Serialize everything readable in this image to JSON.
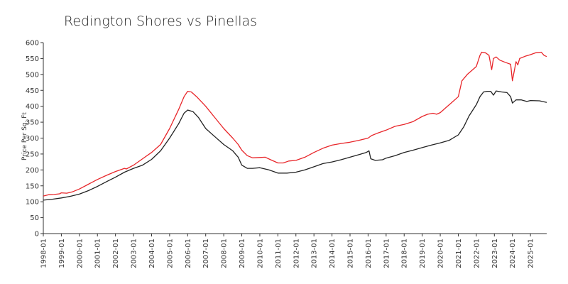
{
  "chart_data": {
    "type": "line",
    "title": "Redington Shores vs Pinellas",
    "xlabel": "",
    "ylabel": "Price Per Sq. Ft",
    "ylim": [
      0,
      600
    ],
    "yticks": [
      0,
      50,
      100,
      150,
      200,
      250,
      300,
      350,
      400,
      450,
      500,
      550,
      600
    ],
    "xticks": [
      "1998-01",
      "1999-01",
      "2000-01",
      "2001-01",
      "2002-01",
      "2003-01",
      "2004-01",
      "2005-01",
      "2006-01",
      "2007-01",
      "2008-01",
      "2009-01",
      "2010-01",
      "2011-01",
      "2012-01",
      "2013-01",
      "2014-01",
      "2015-01",
      "2016-01",
      "2017-01",
      "2018-01",
      "2019-01",
      "2020-01",
      "2021-01",
      "2022-01",
      "2023-01",
      "2024-01",
      "2025-01"
    ],
    "x_range": [
      1998.0,
      2025.9
    ],
    "grid": false,
    "colors": {
      "redington": "#e8262a",
      "pinellas": "#222222"
    },
    "series": [
      {
        "name": "Redington Shores",
        "color": "#e8262a",
        "points": [
          [
            1998.0,
            118
          ],
          [
            1998.3,
            122
          ],
          [
            1998.6,
            123
          ],
          [
            1998.9,
            125
          ],
          [
            1999.0,
            128
          ],
          [
            1999.3,
            127
          ],
          [
            1999.6,
            131
          ],
          [
            2000.0,
            140
          ],
          [
            2000.5,
            155
          ],
          [
            2001.0,
            170
          ],
          [
            2001.5,
            183
          ],
          [
            2002.0,
            195
          ],
          [
            2002.5,
            205
          ],
          [
            2002.6,
            203
          ],
          [
            2003.0,
            215
          ],
          [
            2003.5,
            235
          ],
          [
            2004.0,
            255
          ],
          [
            2004.5,
            280
          ],
          [
            2005.0,
            330
          ],
          [
            2005.5,
            390
          ],
          [
            2005.8,
            430
          ],
          [
            2006.0,
            447
          ],
          [
            2006.2,
            445
          ],
          [
            2006.5,
            430
          ],
          [
            2007.0,
            400
          ],
          [
            2007.5,
            365
          ],
          [
            2008.0,
            330
          ],
          [
            2008.5,
            300
          ],
          [
            2008.8,
            280
          ],
          [
            2009.0,
            262
          ],
          [
            2009.3,
            245
          ],
          [
            2009.6,
            238
          ],
          [
            2010.0,
            239
          ],
          [
            2010.3,
            240
          ],
          [
            2010.6,
            232
          ],
          [
            2011.0,
            222
          ],
          [
            2011.3,
            222
          ],
          [
            2011.6,
            228
          ],
          [
            2012.0,
            230
          ],
          [
            2012.5,
            240
          ],
          [
            2013.0,
            255
          ],
          [
            2013.5,
            268
          ],
          [
            2014.0,
            278
          ],
          [
            2014.5,
            283
          ],
          [
            2015.0,
            287
          ],
          [
            2015.5,
            293
          ],
          [
            2016.0,
            300
          ],
          [
            2016.2,
            308
          ],
          [
            2016.5,
            315
          ],
          [
            2017.0,
            325
          ],
          [
            2017.5,
            337
          ],
          [
            2018.0,
            343
          ],
          [
            2018.5,
            352
          ],
          [
            2019.0,
            368
          ],
          [
            2019.3,
            375
          ],
          [
            2019.6,
            378
          ],
          [
            2019.8,
            375
          ],
          [
            2020.0,
            380
          ],
          [
            2020.3,
            395
          ],
          [
            2020.6,
            410
          ],
          [
            2021.0,
            430
          ],
          [
            2021.2,
            480
          ],
          [
            2021.5,
            500
          ],
          [
            2021.8,
            515
          ],
          [
            2022.0,
            525
          ],
          [
            2022.2,
            560
          ],
          [
            2022.3,
            570
          ],
          [
            2022.5,
            568
          ],
          [
            2022.7,
            560
          ],
          [
            2022.85,
            515
          ],
          [
            2022.95,
            550
          ],
          [
            2023.1,
            555
          ],
          [
            2023.3,
            545
          ],
          [
            2023.6,
            538
          ],
          [
            2023.9,
            532
          ],
          [
            2024.0,
            480
          ],
          [
            2024.2,
            540
          ],
          [
            2024.3,
            530
          ],
          [
            2024.4,
            550
          ],
          [
            2024.7,
            557
          ],
          [
            2025.0,
            562
          ],
          [
            2025.3,
            568
          ],
          [
            2025.6,
            570
          ],
          [
            2025.75,
            560
          ],
          [
            2025.9,
            556
          ]
        ]
      },
      {
        "name": "Pinellas",
        "color": "#222222",
        "points": [
          [
            1998.0,
            105
          ],
          [
            1998.5,
            108
          ],
          [
            1999.0,
            112
          ],
          [
            1999.5,
            117
          ],
          [
            2000.0,
            124
          ],
          [
            2000.5,
            135
          ],
          [
            2001.0,
            148
          ],
          [
            2001.5,
            163
          ],
          [
            2002.0,
            177
          ],
          [
            2002.5,
            193
          ],
          [
            2003.0,
            205
          ],
          [
            2003.5,
            215
          ],
          [
            2004.0,
            233
          ],
          [
            2004.5,
            260
          ],
          [
            2005.0,
            300
          ],
          [
            2005.5,
            345
          ],
          [
            2005.8,
            378
          ],
          [
            2006.0,
            388
          ],
          [
            2006.3,
            383
          ],
          [
            2006.6,
            365
          ],
          [
            2007.0,
            330
          ],
          [
            2007.5,
            305
          ],
          [
            2008.0,
            280
          ],
          [
            2008.5,
            260
          ],
          [
            2008.8,
            240
          ],
          [
            2009.0,
            215
          ],
          [
            2009.3,
            205
          ],
          [
            2009.6,
            205
          ],
          [
            2010.0,
            207
          ],
          [
            2010.5,
            200
          ],
          [
            2011.0,
            190
          ],
          [
            2011.5,
            190
          ],
          [
            2012.0,
            193
          ],
          [
            2012.5,
            200
          ],
          [
            2013.0,
            210
          ],
          [
            2013.5,
            220
          ],
          [
            2014.0,
            225
          ],
          [
            2014.5,
            232
          ],
          [
            2015.0,
            240
          ],
          [
            2015.5,
            248
          ],
          [
            2015.9,
            255
          ],
          [
            2016.05,
            260
          ],
          [
            2016.15,
            235
          ],
          [
            2016.4,
            230
          ],
          [
            2016.8,
            232
          ],
          [
            2017.0,
            237
          ],
          [
            2017.5,
            245
          ],
          [
            2018.0,
            255
          ],
          [
            2018.5,
            262
          ],
          [
            2019.0,
            270
          ],
          [
            2019.5,
            278
          ],
          [
            2020.0,
            285
          ],
          [
            2020.5,
            293
          ],
          [
            2021.0,
            310
          ],
          [
            2021.3,
            335
          ],
          [
            2021.6,
            370
          ],
          [
            2022.0,
            405
          ],
          [
            2022.2,
            430
          ],
          [
            2022.4,
            445
          ],
          [
            2022.6,
            447
          ],
          [
            2022.8,
            447
          ],
          [
            2022.95,
            435
          ],
          [
            2023.1,
            448
          ],
          [
            2023.4,
            445
          ],
          [
            2023.7,
            443
          ],
          [
            2023.9,
            430
          ],
          [
            2024.0,
            410
          ],
          [
            2024.2,
            420
          ],
          [
            2024.5,
            420
          ],
          [
            2024.8,
            415
          ],
          [
            2025.0,
            418
          ],
          [
            2025.5,
            417
          ],
          [
            2025.9,
            412
          ]
        ]
      }
    ]
  }
}
